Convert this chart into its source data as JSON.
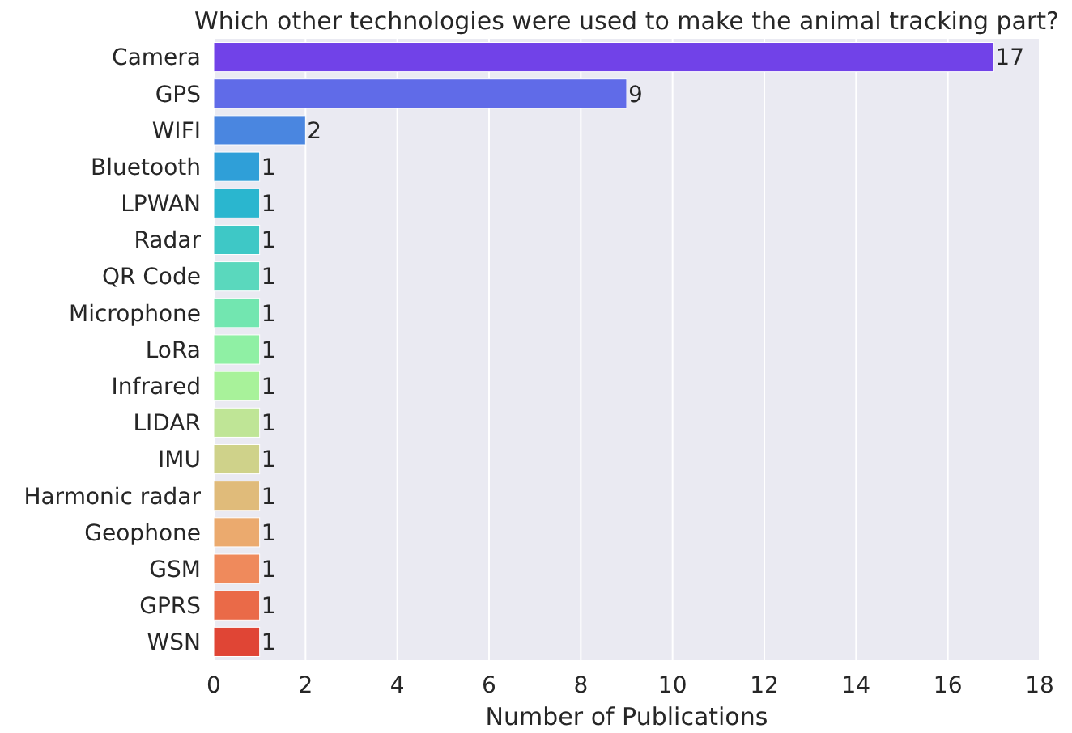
{
  "chart_data": {
    "type": "bar",
    "orientation": "horizontal",
    "title": "Which other technologies were used to make the animal tracking part?",
    "xlabel": "Number of Publications",
    "categories": [
      "Camera",
      "GPS",
      "WIFI",
      "Bluetooth",
      "LPWAN",
      "Radar",
      "QR Code",
      "Microphone",
      "LoRa",
      "Infrared",
      "LIDAR",
      "IMU",
      "Harmonic radar",
      "Geophone",
      "GSM",
      "GPRS",
      "WSN"
    ],
    "values": [
      17,
      9,
      2,
      1,
      1,
      1,
      1,
      1,
      1,
      1,
      1,
      1,
      1,
      1,
      1,
      1,
      1
    ],
    "colors": [
      "#7142e8",
      "#606be8",
      "#4a86e0",
      "#2f9fd8",
      "#2ab6cf",
      "#3ec8c6",
      "#5ad8bd",
      "#72e6b0",
      "#8ff0a4",
      "#a8f29a",
      "#bfe596",
      "#cfd28a",
      "#e0bb7a",
      "#ebaa6e",
      "#ef8a5c",
      "#ea6a48",
      "#e04535"
    ],
    "xlim": [
      0,
      18
    ],
    "xticks": [
      0,
      2,
      4,
      6,
      8,
      10,
      12,
      14,
      16,
      18
    ],
    "grid": "x",
    "data_labels": true
  }
}
